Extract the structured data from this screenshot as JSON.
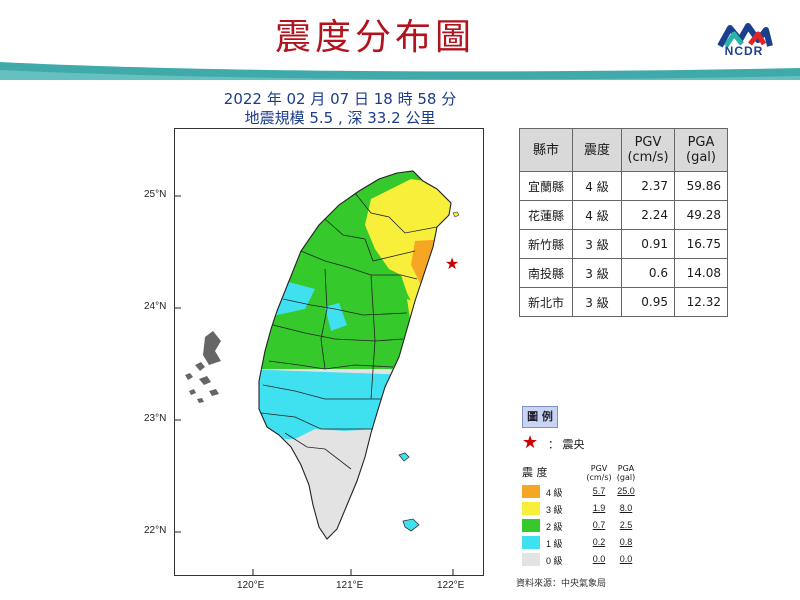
{
  "page": {
    "title": "震度分布圖",
    "logo_text": "NCDR"
  },
  "event": {
    "datetime": "2022 年 02 月 07 日 18 時 58 分",
    "magnitude_depth": "地震規模 5.5 , 深 33.2 公里"
  },
  "map": {
    "lat_ticks": [
      "25°N",
      "24°N",
      "23°N",
      "22°N"
    ],
    "lon_ticks": [
      "120°E",
      "121°E",
      "122°E"
    ],
    "epicenter_icon": "red-star-icon",
    "zone_colors": {
      "4": "#f5a623",
      "3": "#f7ef3a",
      "2": "#35c92c",
      "1": "#3fe0f0",
      "0": "#e3e3e3"
    }
  },
  "table": {
    "headers": [
      "縣市",
      "震度",
      "PGV\n(cm/s)",
      "PGA\n(gal)"
    ],
    "rows": [
      [
        "宜蘭縣",
        "4 級",
        "2.37",
        "59.86"
      ],
      [
        "花蓮縣",
        "4 級",
        "2.24",
        "49.28"
      ],
      [
        "新竹縣",
        "3 級",
        "0.91",
        "16.75"
      ],
      [
        "南投縣",
        "3 級",
        "0.6",
        "14.08"
      ],
      [
        "新北市",
        "3 級",
        "0.95",
        "12.32"
      ]
    ]
  },
  "legend": {
    "title": "圖 例",
    "epicenter_label": "： 震央",
    "header": [
      "震 度",
      "PGV\n(cm/s)",
      "PGA\n(gal)"
    ],
    "rows": [
      {
        "level": "4 級",
        "pgv": "5.7",
        "pga": "25.0",
        "color": "#f5a623"
      },
      {
        "level": "3 級",
        "pgv": "1.9",
        "pga": "8.0",
        "color": "#f7ef3a"
      },
      {
        "level": "2 級",
        "pgv": "0.7",
        "pga": "2.5",
        "color": "#35c92c"
      },
      {
        "level": "1 級",
        "pgv": "0.2",
        "pga": "0.8",
        "color": "#3fe0f0"
      },
      {
        "level": "0 級",
        "pgv": "0.0",
        "pga": "0.0",
        "color": "#e3e3e3"
      }
    ],
    "source": "資料來源：中央氣象局"
  }
}
